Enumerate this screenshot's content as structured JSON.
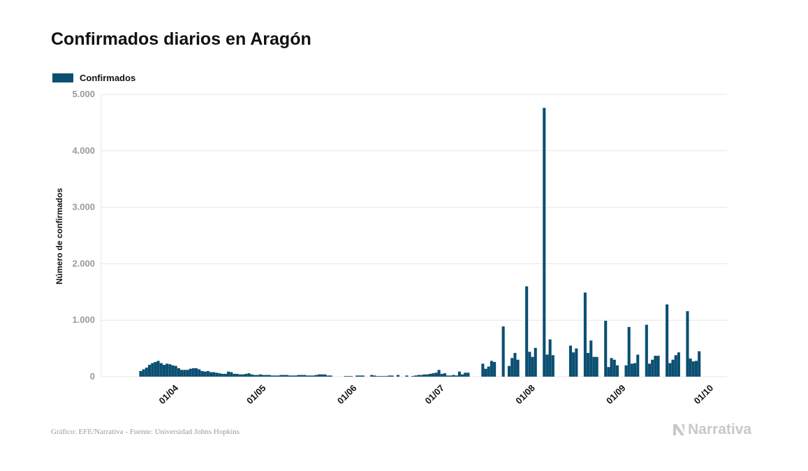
{
  "title": "Confirmados diarios en Aragón",
  "footer": "Gráfico: EFE/Narrativa - Fuente: Universidad Johns Hopkins",
  "brand": "Narrativa",
  "colors": {
    "bar": "#0b4f72",
    "grid": "#e6e6e6",
    "tick": "#9a9a9a",
    "axis_title": "#111111"
  },
  "chart_data": {
    "type": "bar",
    "title": "Confirmados diarios en Aragón",
    "ylabel": "Número de confirmados",
    "xlabel": "",
    "ylim": [
      0,
      5000
    ],
    "yticks": [
      0,
      1000,
      2000,
      3000,
      4000,
      5000
    ],
    "ytick_labels": [
      "0",
      "1.000",
      "2.000",
      "3.000",
      "4.000",
      "5.000"
    ],
    "xticks": [
      {
        "label": "01/04",
        "date": "2020-04-01"
      },
      {
        "label": "01/05",
        "date": "2020-05-01"
      },
      {
        "label": "01/06",
        "date": "2020-06-01"
      },
      {
        "label": "01/07",
        "date": "2020-07-01"
      },
      {
        "label": "01/08",
        "date": "2020-08-01"
      },
      {
        "label": "01/09",
        "date": "2020-09-01"
      },
      {
        "label": "01/10",
        "date": "2020-10-01"
      }
    ],
    "grid": true,
    "legend_position": "top-left",
    "series": [
      {
        "name": "Confirmados",
        "start_date": "2020-03-19",
        "values": [
          100,
          130,
          160,
          210,
          240,
          260,
          280,
          240,
          210,
          230,
          220,
          200,
          190,
          150,
          120,
          120,
          120,
          140,
          150,
          150,
          130,
          100,
          90,
          100,
          80,
          80,
          70,
          60,
          50,
          50,
          90,
          80,
          50,
          50,
          40,
          40,
          50,
          60,
          40,
          30,
          30,
          40,
          30,
          30,
          30,
          20,
          20,
          20,
          30,
          30,
          30,
          20,
          20,
          20,
          30,
          30,
          30,
          20,
          20,
          20,
          30,
          40,
          40,
          40,
          20,
          20,
          0,
          0,
          0,
          0,
          10,
          10,
          10,
          0,
          20,
          20,
          20,
          0,
          0,
          30,
          20,
          10,
          10,
          10,
          10,
          20,
          20,
          0,
          30,
          0,
          0,
          20,
          0,
          10,
          20,
          30,
          30,
          40,
          40,
          50,
          60,
          70,
          120,
          50,
          60,
          20,
          20,
          30,
          20,
          90,
          40,
          70,
          70,
          0,
          0,
          0,
          0,
          230,
          140,
          180,
          280,
          260,
          0,
          0,
          890,
          0,
          190,
          330,
          420,
          300,
          0,
          0,
          1600,
          440,
          350,
          510,
          0,
          0,
          4760,
          390,
          660,
          380,
          0,
          0,
          0,
          0,
          0,
          550,
          430,
          500,
          0,
          0,
          1490,
          420,
          640,
          350,
          350,
          0,
          0,
          990,
          170,
          330,
          300,
          200,
          0,
          0,
          200,
          880,
          230,
          240,
          390,
          0,
          0,
          920,
          230,
          300,
          370,
          370,
          0,
          0,
          1280,
          240,
          300,
          380,
          430,
          0,
          0,
          1160,
          320,
          270,
          280,
          450,
          0,
          0,
          0,
          0,
          0,
          0
        ]
      }
    ]
  }
}
